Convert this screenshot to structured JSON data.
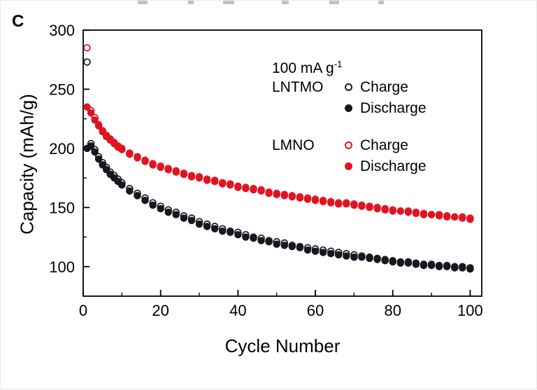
{
  "panel_label": "C",
  "colors": {
    "lntmo": "#17171f",
    "lmno": "#e01420",
    "axis": "#000000"
  },
  "legend": {
    "rate_text": "100 mA g",
    "rate_sup": "-1",
    "groups": [
      {
        "name": "LNTMO",
        "color": "#17171f",
        "entries": [
          {
            "marker": "open",
            "label": "Charge"
          },
          {
            "marker": "filled",
            "label": "Discharge"
          }
        ]
      },
      {
        "name": "LMNO",
        "color": "#e01420",
        "entries": [
          {
            "marker": "open",
            "label": "Charge"
          },
          {
            "marker": "filled",
            "label": "Discharge"
          }
        ]
      }
    ]
  },
  "chart_data": {
    "type": "scatter",
    "title": "",
    "xlabel": "Cycle Number",
    "ylabel": "Capacity (mAh/g)",
    "xlim": [
      0,
      103
    ],
    "ylim": [
      75,
      300
    ],
    "xticks": [
      0,
      20,
      40,
      60,
      80,
      100
    ],
    "yticks": [
      100,
      150,
      200,
      250,
      300
    ],
    "x_minor_step": 10,
    "y_minor_step": 25,
    "grid": false,
    "legend_position": "upper right inside",
    "series": [
      {
        "name": "LNTMO Charge",
        "marker": "open",
        "color": "#17171f",
        "points": [
          [
            1,
            273
          ],
          [
            2,
            204
          ],
          [
            3,
            199
          ],
          [
            4,
            193
          ],
          [
            5,
            188
          ],
          [
            6,
            184
          ],
          [
            7,
            180
          ],
          [
            8,
            177
          ],
          [
            9,
            174
          ],
          [
            10,
            171
          ],
          [
            12,
            166
          ],
          [
            14,
            162
          ],
          [
            16,
            158
          ],
          [
            18,
            154
          ],
          [
            20,
            151
          ],
          [
            22,
            148
          ],
          [
            24,
            146
          ],
          [
            26,
            143
          ],
          [
            28,
            141
          ],
          [
            30,
            138
          ],
          [
            32,
            136
          ],
          [
            34,
            134
          ],
          [
            36,
            132
          ],
          [
            38,
            130
          ],
          [
            40,
            129
          ],
          [
            42,
            127
          ],
          [
            44,
            125
          ],
          [
            46,
            124
          ],
          [
            48,
            122
          ],
          [
            50,
            121
          ],
          [
            52,
            120
          ],
          [
            54,
            118
          ],
          [
            56,
            117
          ],
          [
            58,
            116
          ],
          [
            60,
            115
          ],
          [
            62,
            114
          ],
          [
            64,
            113
          ],
          [
            66,
            112
          ],
          [
            68,
            111
          ],
          [
            70,
            110
          ],
          [
            72,
            109
          ],
          [
            74,
            108
          ],
          [
            76,
            107
          ],
          [
            78,
            106
          ],
          [
            80,
            105
          ],
          [
            82,
            104
          ],
          [
            84,
            104
          ],
          [
            86,
            103
          ],
          [
            88,
            102
          ],
          [
            90,
            102
          ],
          [
            92,
            101
          ],
          [
            94,
            101
          ],
          [
            96,
            100
          ],
          [
            98,
            100
          ],
          [
            100,
            99
          ]
        ]
      },
      {
        "name": "LNTMO Discharge",
        "marker": "filled",
        "color": "#17171f",
        "points": [
          [
            1,
            200
          ],
          [
            2,
            202
          ],
          [
            3,
            197
          ],
          [
            4,
            191
          ],
          [
            5,
            186
          ],
          [
            6,
            182
          ],
          [
            7,
            178
          ],
          [
            8,
            175
          ],
          [
            9,
            172
          ],
          [
            10,
            169
          ],
          [
            12,
            164
          ],
          [
            14,
            160
          ],
          [
            16,
            156
          ],
          [
            18,
            152
          ],
          [
            20,
            149
          ],
          [
            22,
            146
          ],
          [
            24,
            144
          ],
          [
            26,
            141
          ],
          [
            28,
            139
          ],
          [
            30,
            136
          ],
          [
            32,
            134
          ],
          [
            34,
            132
          ],
          [
            36,
            130
          ],
          [
            38,
            129
          ],
          [
            40,
            127
          ],
          [
            42,
            125
          ],
          [
            44,
            124
          ],
          [
            46,
            122
          ],
          [
            48,
            121
          ],
          [
            50,
            119
          ],
          [
            52,
            118
          ],
          [
            54,
            117
          ],
          [
            56,
            116
          ],
          [
            58,
            114
          ],
          [
            60,
            113
          ],
          [
            62,
            112
          ],
          [
            64,
            111
          ],
          [
            66,
            110
          ],
          [
            68,
            109
          ],
          [
            70,
            108
          ],
          [
            72,
            108
          ],
          [
            74,
            107
          ],
          [
            76,
            106
          ],
          [
            78,
            105
          ],
          [
            80,
            104
          ],
          [
            82,
            103
          ],
          [
            84,
            103
          ],
          [
            86,
            102
          ],
          [
            88,
            101
          ],
          [
            90,
            101
          ],
          [
            92,
            100
          ],
          [
            94,
            100
          ],
          [
            96,
            99
          ],
          [
            98,
            99
          ],
          [
            100,
            98
          ]
        ]
      },
      {
        "name": "LMNO Charge",
        "marker": "open",
        "color": "#e01420",
        "points": [
          [
            1,
            285
          ],
          [
            2,
            232
          ],
          [
            3,
            226
          ],
          [
            4,
            220
          ],
          [
            5,
            215
          ],
          [
            6,
            211
          ],
          [
            7,
            208
          ],
          [
            8,
            205
          ],
          [
            9,
            202
          ],
          [
            10,
            200
          ],
          [
            12,
            196
          ],
          [
            14,
            193
          ],
          [
            16,
            190
          ],
          [
            18,
            187
          ],
          [
            20,
            185
          ],
          [
            22,
            183
          ],
          [
            24,
            181
          ],
          [
            26,
            179
          ],
          [
            28,
            177
          ],
          [
            30,
            176
          ],
          [
            32,
            174
          ],
          [
            34,
            173
          ],
          [
            36,
            171
          ],
          [
            38,
            170
          ],
          [
            40,
            168
          ],
          [
            42,
            167
          ],
          [
            44,
            166
          ],
          [
            46,
            165
          ],
          [
            48,
            163
          ],
          [
            50,
            162
          ],
          [
            52,
            161
          ],
          [
            54,
            160
          ],
          [
            56,
            159
          ],
          [
            58,
            158
          ],
          [
            60,
            157
          ],
          [
            62,
            156
          ],
          [
            64,
            155
          ],
          [
            66,
            154
          ],
          [
            68,
            154
          ],
          [
            70,
            153
          ],
          [
            72,
            152
          ],
          [
            74,
            151
          ],
          [
            76,
            150
          ],
          [
            78,
            149
          ],
          [
            80,
            148
          ],
          [
            82,
            147
          ],
          [
            84,
            147
          ],
          [
            86,
            146
          ],
          [
            88,
            145
          ],
          [
            90,
            144
          ],
          [
            92,
            144
          ],
          [
            94,
            143
          ],
          [
            96,
            142
          ],
          [
            98,
            142
          ],
          [
            100,
            141
          ]
        ]
      },
      {
        "name": "LMNO Discharge",
        "marker": "filled",
        "color": "#e01420",
        "points": [
          [
            1,
            235
          ],
          [
            2,
            230
          ],
          [
            3,
            224
          ],
          [
            4,
            219
          ],
          [
            5,
            214
          ],
          [
            6,
            210
          ],
          [
            7,
            207
          ],
          [
            8,
            204
          ],
          [
            9,
            201
          ],
          [
            10,
            199
          ],
          [
            12,
            195
          ],
          [
            14,
            192
          ],
          [
            16,
            189
          ],
          [
            18,
            186
          ],
          [
            20,
            184
          ],
          [
            22,
            182
          ],
          [
            24,
            180
          ],
          [
            26,
            178
          ],
          [
            28,
            176
          ],
          [
            30,
            175
          ],
          [
            32,
            173
          ],
          [
            34,
            172
          ],
          [
            36,
            170
          ],
          [
            38,
            169
          ],
          [
            40,
            167
          ],
          [
            42,
            166
          ],
          [
            44,
            165
          ],
          [
            46,
            164
          ],
          [
            48,
            162
          ],
          [
            50,
            161
          ],
          [
            52,
            160
          ],
          [
            54,
            159
          ],
          [
            56,
            158
          ],
          [
            58,
            157
          ],
          [
            60,
            156
          ],
          [
            62,
            155
          ],
          [
            64,
            154
          ],
          [
            66,
            153
          ],
          [
            68,
            153
          ],
          [
            70,
            152
          ],
          [
            72,
            151
          ],
          [
            74,
            150
          ],
          [
            76,
            149
          ],
          [
            78,
            148
          ],
          [
            80,
            147
          ],
          [
            82,
            147
          ],
          [
            84,
            146
          ],
          [
            86,
            145
          ],
          [
            88,
            144
          ],
          [
            90,
            144
          ],
          [
            92,
            143
          ],
          [
            94,
            142
          ],
          [
            96,
            142
          ],
          [
            98,
            141
          ],
          [
            100,
            140
          ]
        ]
      }
    ]
  }
}
